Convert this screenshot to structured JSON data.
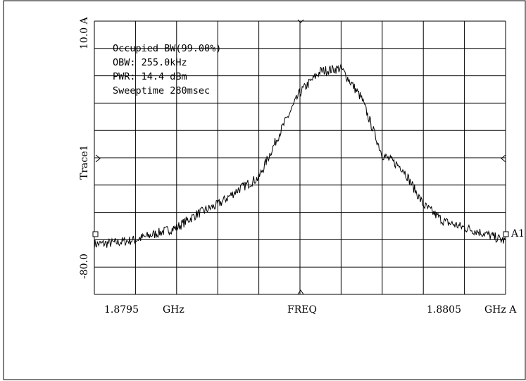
{
  "chart_data": {
    "type": "line",
    "annotations": {
      "line1": "Occupied BW(99.00%)",
      "line2": "OBW: 255.0kHz",
      "line3": "PWR: 14.4 dBm",
      "line4": "Sweeptime 280msec"
    },
    "axis": {
      "top_label": "10.0 A",
      "bottom_label": "-80.0",
      "ylabel": "Trace1",
      "x_left": "1.8795",
      "x_left_unit": "GHz",
      "x_center": "FREQ",
      "x_right": "1.8805",
      "x_right_unit": "GHz A",
      "marker": "A1"
    },
    "xlim": [
      1.8795,
      1.8805
    ],
    "ylim": [
      -80,
      10
    ],
    "grid": true,
    "series": [
      {
        "x": [
          1.8795,
          1.87955,
          1.8796,
          1.87965,
          1.8797,
          1.87975,
          1.8798,
          1.87985,
          1.8799,
          1.87995,
          1.88,
          1.88005,
          1.8801,
          1.88015,
          1.8802,
          1.88025,
          1.8803,
          1.88035,
          1.8804,
          1.88045,
          1.8805
        ],
        "y": [
          -63.5,
          -63,
          -62,
          -60,
          -58,
          -53.5,
          -50.5,
          -45.5,
          -41.5,
          -27,
          -13.5,
          -6.5,
          -5.5,
          -15.5,
          -34,
          -38.5,
          -50.5,
          -56,
          -58,
          -60,
          -62.5
        ]
      }
    ]
  }
}
